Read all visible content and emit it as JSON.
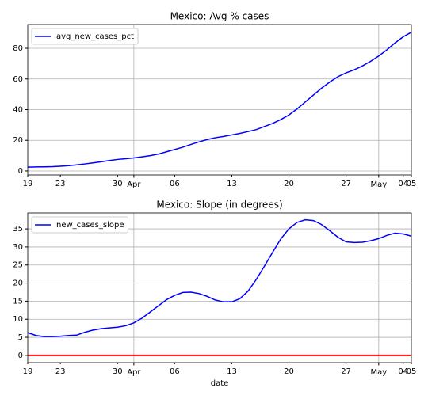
{
  "chart_data": [
    {
      "type": "line",
      "title": "Mexico: Avg % cases",
      "x": [
        "03-19",
        "03-20",
        "03-21",
        "03-22",
        "03-23",
        "03-24",
        "03-25",
        "03-26",
        "03-27",
        "03-28",
        "03-29",
        "03-30",
        "03-31",
        "04-01",
        "04-02",
        "04-03",
        "04-04",
        "04-05",
        "04-06",
        "04-07",
        "04-08",
        "04-09",
        "04-10",
        "04-11",
        "04-12",
        "04-13",
        "04-14",
        "04-15",
        "04-16",
        "04-17",
        "04-18",
        "04-19",
        "04-20",
        "04-21",
        "04-22",
        "04-23",
        "04-24",
        "04-25",
        "04-26",
        "04-27",
        "04-28",
        "04-29",
        "04-30",
        "05-01",
        "05-02",
        "05-03",
        "05-04",
        "05-05"
      ],
      "series": [
        {
          "name": "avg_new_cases_pct",
          "color": "#0000ff",
          "values": [
            2.5,
            2.6,
            2.7,
            2.8,
            3.1,
            3.5,
            4,
            4.6,
            5.3,
            6,
            6.8,
            7.5,
            8,
            8.5,
            9.2,
            10,
            11,
            12.5,
            14,
            15.5,
            17.3,
            19,
            20.5,
            21.7,
            22.5,
            23.5,
            24.5,
            25.7,
            27,
            29,
            31,
            33.5,
            36.5,
            40.5,
            45,
            49.5,
            54,
            58,
            61.5,
            64,
            66,
            68.5,
            71.5,
            75,
            79,
            83.5,
            87.5,
            90.5
          ]
        }
      ],
      "xlim": [
        "03-19",
        "05-05"
      ],
      "xticks": [
        {
          "value": "03-19",
          "label": "19"
        },
        {
          "value": "03-23",
          "label": "23"
        },
        {
          "value": "03-30",
          "label": "30"
        },
        {
          "value": "04-06",
          "label": "06"
        },
        {
          "value": "04-13",
          "label": "13"
        },
        {
          "value": "04-20",
          "label": "20"
        },
        {
          "value": "04-27",
          "label": "27"
        },
        {
          "value": "05-04",
          "label": "04"
        },
        {
          "value": "05-05",
          "label": "05"
        }
      ],
      "xticks_major": [
        {
          "value": "04-01",
          "label": "Apr"
        },
        {
          "value": "05-01",
          "label": "May"
        }
      ],
      "ylim": [
        -2.6,
        95.5
      ],
      "yticks": [
        0,
        20,
        40,
        60,
        80
      ],
      "grid": true,
      "legend": "upper left"
    },
    {
      "type": "line",
      "title": "Mexico: Slope (in degrees)",
      "xlabel": "date",
      "x": [
        "03-19",
        "03-20",
        "03-21",
        "03-22",
        "03-23",
        "03-24",
        "03-25",
        "03-26",
        "03-27",
        "03-28",
        "03-29",
        "03-30",
        "03-31",
        "04-01",
        "04-02",
        "04-03",
        "04-04",
        "04-05",
        "04-06",
        "04-07",
        "04-08",
        "04-09",
        "04-10",
        "04-11",
        "04-12",
        "04-13",
        "04-14",
        "04-15",
        "04-16",
        "04-17",
        "04-18",
        "04-19",
        "04-20",
        "04-21",
        "04-22",
        "04-23",
        "04-24",
        "04-25",
        "04-26",
        "04-27",
        "04-28",
        "04-29",
        "04-30",
        "05-01",
        "05-02",
        "05-03",
        "05-04",
        "05-05"
      ],
      "series": [
        {
          "name": "new_cases_slope",
          "color": "#0000ff",
          "values": [
            6.3,
            5.5,
            5.2,
            5.2,
            5.3,
            5.5,
            5.6,
            6.4,
            7,
            7.4,
            7.6,
            7.8,
            8.2,
            9,
            10.3,
            12,
            13.7,
            15.4,
            16.6,
            17.4,
            17.5,
            17.1,
            16.3,
            15.3,
            14.8,
            14.8,
            15.7,
            17.8,
            21,
            24.7,
            28.5,
            32.2,
            35,
            36.8,
            37.5,
            37.3,
            36.2,
            34.5,
            32.7,
            31.4,
            31.2,
            31.3,
            31.7,
            32.3,
            33.2,
            33.8,
            33.6,
            33
          ]
        }
      ],
      "hline": {
        "value": 0,
        "color": "#ff0000"
      },
      "xlim": [
        "03-19",
        "05-05"
      ],
      "xticks": [
        {
          "value": "03-19",
          "label": "19"
        },
        {
          "value": "03-23",
          "label": "23"
        },
        {
          "value": "03-30",
          "label": "30"
        },
        {
          "value": "04-06",
          "label": "06"
        },
        {
          "value": "04-13",
          "label": "13"
        },
        {
          "value": "04-20",
          "label": "20"
        },
        {
          "value": "04-27",
          "label": "27"
        },
        {
          "value": "05-04",
          "label": "04"
        },
        {
          "value": "05-05",
          "label": "05"
        }
      ],
      "xticks_major": [
        {
          "value": "04-01",
          "label": "Apr"
        },
        {
          "value": "05-01",
          "label": "May"
        }
      ],
      "ylim": [
        -2,
        39.4
      ],
      "yticks": [
        0,
        5,
        10,
        15,
        20,
        25,
        30,
        35
      ],
      "grid": true,
      "legend": "upper left"
    }
  ]
}
